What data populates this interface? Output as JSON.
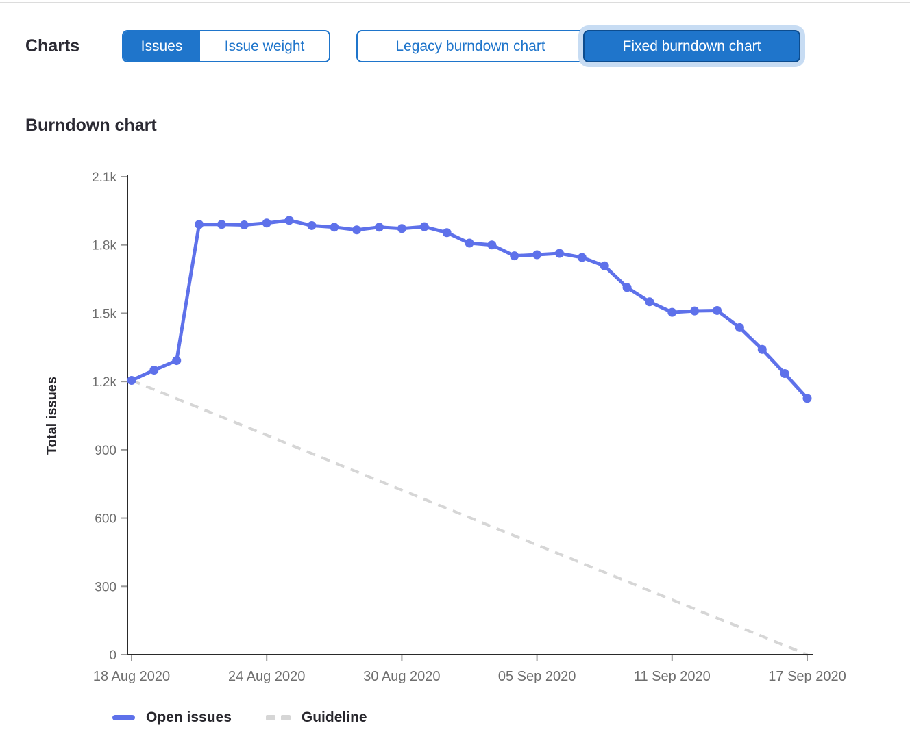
{
  "header": {
    "title": "Charts"
  },
  "toggle_groups": {
    "metric": {
      "options": [
        {
          "label": "Issues",
          "selected": true
        },
        {
          "label": "Issue weight",
          "selected": false
        }
      ]
    },
    "chart_type": {
      "options": [
        {
          "label": "Legacy burndown chart",
          "selected": false
        },
        {
          "label": "Fixed burndown chart",
          "selected": true,
          "focused": true
        }
      ]
    }
  },
  "section": {
    "heading": "Burndown chart"
  },
  "colors": {
    "accent_blue": "#1f75cb",
    "selected_border": "#0d4d8f",
    "focus_halo": "#c7dcf3",
    "line_blue": "#5e71ea",
    "guideline_gray": "#d6d6d6",
    "axis_line": "#2a2a2a",
    "tick_gray": "#999999",
    "tick_label": "#6e6e6e",
    "text_dark": "#28272d"
  },
  "chart_data": {
    "type": "line",
    "title": "Burndown chart",
    "xlabel": "",
    "ylabel": "Total issues",
    "ylim": [
      0,
      2100
    ],
    "y_ticks": [
      0,
      300,
      600,
      900,
      1200,
      1500,
      1800,
      2100
    ],
    "y_tick_labels": [
      "0",
      "300",
      "600",
      "900",
      "1.2k",
      "1.5k",
      "1.8k",
      "2.1k"
    ],
    "x_tick_labels": [
      "18 Aug 2020",
      "24 Aug 2020",
      "30 Aug 2020",
      "05 Sep 2020",
      "11 Sep 2020",
      "17 Sep 2020"
    ],
    "x_tick_days": [
      0,
      6,
      12,
      18,
      24,
      30
    ],
    "x_total_days": 30,
    "grid": false,
    "legend_position": "bottom-left",
    "series": [
      {
        "name": "Open issues",
        "style": "solid",
        "color_key": "line_blue",
        "values": [
          1205,
          1250,
          1292,
          1890,
          1890,
          1888,
          1896,
          1908,
          1885,
          1878,
          1866,
          1878,
          1872,
          1880,
          1854,
          1808,
          1800,
          1752,
          1757,
          1763,
          1745,
          1708,
          1613,
          1550,
          1504,
          1510,
          1512,
          1437,
          1341,
          1235,
          1126
        ]
      },
      {
        "name": "Guideline",
        "style": "dashed",
        "color_key": "guideline_gray",
        "points": [
          [
            0,
            1205
          ],
          [
            30,
            0
          ]
        ]
      }
    ],
    "legend": [
      {
        "label": "Open issues",
        "swatch": "solid-blue"
      },
      {
        "label": "Guideline",
        "swatch": "dashed-gray"
      }
    ]
  }
}
